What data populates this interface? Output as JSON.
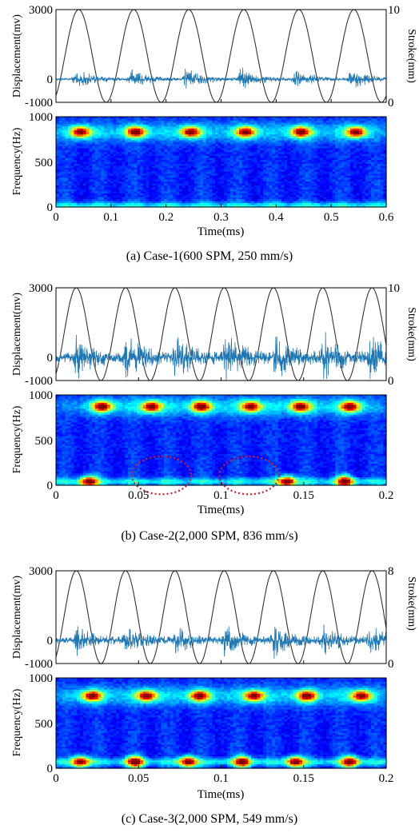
{
  "colors": {
    "signal": "#1f77b4",
    "stroke_curve": "#333333",
    "axis": "#000000",
    "ellipse": "#cc1f2f"
  },
  "chart_data": [
    {
      "id": "case1",
      "type": "line",
      "caption": "(a) Case-1(600 SPM, 250 mm/s)",
      "xlabel": "Time(ms)",
      "xlim": [
        0,
        0.6
      ],
      "xticks": [
        "0",
        "0.1",
        "0.2",
        "0.3",
        "0.4",
        "0.5",
        "0.6"
      ],
      "x_tick_values": [
        0,
        0.1,
        0.2,
        0.3,
        0.4,
        0.5,
        0.6
      ],
      "displacement": {
        "ylabel": "Displacement(mv)",
        "ylim": [
          -1000,
          3000
        ],
        "yticks": [
          "3000",
          "0",
          "-1000"
        ],
        "ytick_values": [
          3000,
          0,
          -1000
        ],
        "y2label": "Stroke(mm)",
        "y2lim": [
          0,
          10
        ],
        "y2ticks": [
          "10",
          "0"
        ],
        "y2tick_values": [
          10,
          0
        ],
        "stroke_cycles": 6,
        "burst_times": [
          0.035,
          0.135,
          0.235,
          0.335,
          0.435,
          0.535
        ],
        "burst_amplitude_mv": 520,
        "noise_amplitude_mv": 60
      },
      "spectrogram": {
        "type": "heatmap",
        "ylabel": "Frequency(Hz)",
        "ylim": [
          0,
          1000
        ],
        "yticks": [
          "1000",
          "500",
          "0"
        ],
        "ytick_values": [
          1000,
          500,
          0
        ],
        "hotspot_frequency_hz": 830,
        "hotspot_times": [
          0.045,
          0.145,
          0.245,
          0.345,
          0.445,
          0.545
        ],
        "low_band_hz": 15
      }
    },
    {
      "id": "case2",
      "type": "line",
      "caption": "(b) Case-2(2,000 SPM, 836 mm/s)",
      "xlabel": "Time(ms)",
      "xlim": [
        0,
        0.2
      ],
      "xticks": [
        "0",
        "0.05",
        "0.1",
        "0.15",
        "0.2"
      ],
      "x_tick_values": [
        0,
        0.05,
        0.1,
        0.15,
        0.2
      ],
      "displacement": {
        "ylabel": "Displacement(mv)",
        "ylim": [
          -1000,
          3000
        ],
        "yticks": [
          "3000",
          "0",
          "-1000"
        ],
        "ytick_values": [
          3000,
          0,
          -1000
        ],
        "y2label": "Stroke(mm)",
        "y2lim": [
          0,
          10
        ],
        "y2ticks": [
          "10",
          "0"
        ],
        "y2tick_values": [
          10,
          0
        ],
        "stroke_cycles": 6.7,
        "burst_times": [
          0.012,
          0.042,
          0.072,
          0.102,
          0.132,
          0.162,
          0.19
        ],
        "burst_amplitude_mv": 950,
        "noise_amplitude_mv": 250
      },
      "spectrogram": {
        "type": "heatmap",
        "ylabel": "Frequency(Hz)",
        "ylim": [
          0,
          1000
        ],
        "yticks": [
          "1000",
          "500",
          "0"
        ],
        "ytick_values": [
          1000,
          500,
          0
        ],
        "hotspot_frequency_hz": 870,
        "hotspot_times": [
          0.028,
          0.058,
          0.088,
          0.118,
          0.148,
          0.178
        ],
        "low_hotspot_times": [
          0.02,
          0.14,
          0.175
        ],
        "low_band_hz": 40,
        "highlight_ellipses": [
          {
            "t_center": 0.064,
            "t_halfwidth": 0.018,
            "f_center": 110,
            "f_halfwidth": 210
          },
          {
            "t_center": 0.117,
            "t_halfwidth": 0.018,
            "f_center": 110,
            "f_halfwidth": 210
          }
        ]
      }
    },
    {
      "id": "case3",
      "type": "line",
      "caption": "(c) Case-3(2,000 SPM, 549 mm/s)",
      "xlabel": "Time(ms)",
      "xlim": [
        0,
        0.2
      ],
      "xticks": [
        "0",
        "0.05",
        "0.1",
        "0.15",
        "0.2"
      ],
      "x_tick_values": [
        0,
        0.05,
        0.1,
        0.15,
        0.2
      ],
      "displacement": {
        "ylabel": "Displacement(mv)",
        "ylim": [
          -1000,
          3000
        ],
        "yticks": [
          "3000",
          "0",
          "-1000"
        ],
        "ytick_values": [
          3000,
          0,
          -1000
        ],
        "y2label": "Stroke(mm)",
        "y2lim": [
          0,
          8
        ],
        "y2ticks": [
          "8",
          "0"
        ],
        "y2tick_values": [
          8,
          0
        ],
        "stroke_cycles": 6.7,
        "burst_times": [
          0.012,
          0.042,
          0.072,
          0.102,
          0.132,
          0.162,
          0.19
        ],
        "burst_amplitude_mv": 650,
        "noise_amplitude_mv": 150
      },
      "spectrogram": {
        "type": "heatmap",
        "ylabel": "Frequency(Hz)",
        "ylim": [
          0,
          1000
        ],
        "yticks": [
          "1000",
          "500",
          "0"
        ],
        "ytick_values": [
          1000,
          500,
          0
        ],
        "hotspot_frequency_hz": 800,
        "hotspot_times": [
          0.022,
          0.055,
          0.087,
          0.12,
          0.152,
          0.185
        ],
        "low_hotspot_times": [
          0.015,
          0.048,
          0.08,
          0.113,
          0.145,
          0.178
        ],
        "low_band_hz": 70
      }
    }
  ]
}
